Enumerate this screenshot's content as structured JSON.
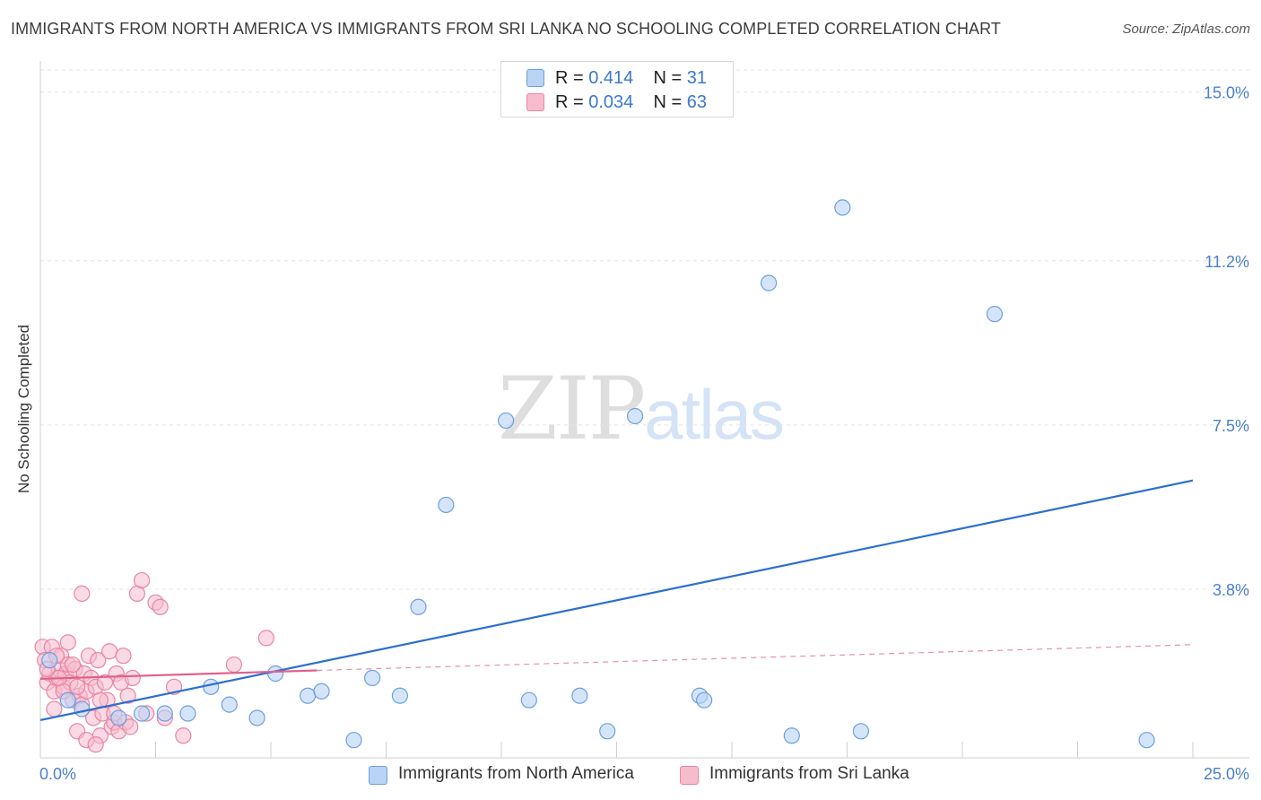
{
  "title": "IMMIGRANTS FROM NORTH AMERICA VS IMMIGRANTS FROM SRI LANKA NO SCHOOLING COMPLETED CORRELATION CHART",
  "source": "Source: ZipAtlas.com",
  "watermark": {
    "zip": "ZIP",
    "atlas": "atlas"
  },
  "legend": {
    "series1": {
      "r_label": "R = ",
      "r_value": "0.414",
      "n_label": "N = ",
      "n_value": "31"
    },
    "series2": {
      "r_label": "R = ",
      "r_value": "0.034",
      "n_label": "N = ",
      "n_value": "63"
    }
  },
  "colors": {
    "blue_fill": "#b9d3f5",
    "blue_stroke": "#6d9fe0",
    "blue_line": "#2b6fd0",
    "pink_fill": "#f6bccd",
    "pink_stroke": "#ea85a5",
    "pink_line": "#e0608d",
    "grid": "#e4e4e4",
    "axis_text": "#4a7fcf"
  },
  "chart_data": {
    "type": "scatter",
    "title": "IMMIGRANTS FROM NORTH AMERICA VS IMMIGRANTS FROM SRI LANKA NO SCHOOLING COMPLETED CORRELATION CHART",
    "xlabel": "",
    "ylabel": "No Schooling Completed",
    "xlim": [
      0,
      25
    ],
    "ylim": [
      0,
      15.5
    ],
    "x_tick_labels": [
      "0.0%",
      "25.0%"
    ],
    "y_ticks": [
      3.8,
      7.5,
      11.2,
      15.0
    ],
    "y_tick_labels": [
      "3.8%",
      "7.5%",
      "11.2%",
      "15.0%"
    ],
    "grid": true,
    "series": [
      {
        "name": "Immigrants from North America",
        "color": "#6d9fe0",
        "points": [
          [
            0.2,
            2.2
          ],
          [
            0.6,
            1.3
          ],
          [
            0.9,
            1.1
          ],
          [
            1.7,
            0.9
          ],
          [
            2.2,
            1.0
          ],
          [
            2.7,
            1.0
          ],
          [
            3.2,
            1.0
          ],
          [
            3.7,
            1.6
          ],
          [
            4.1,
            1.2
          ],
          [
            4.7,
            0.9
          ],
          [
            5.1,
            1.9
          ],
          [
            5.8,
            1.4
          ],
          [
            6.1,
            1.5
          ],
          [
            6.8,
            0.4
          ],
          [
            7.2,
            1.8
          ],
          [
            7.8,
            1.4
          ],
          [
            8.2,
            3.4
          ],
          [
            8.8,
            5.7
          ],
          [
            10.1,
            7.6
          ],
          [
            10.6,
            1.3
          ],
          [
            11.7,
            1.4
          ],
          [
            12.3,
            0.6
          ],
          [
            12.9,
            7.7
          ],
          [
            14.3,
            1.4
          ],
          [
            14.4,
            1.3
          ],
          [
            15.8,
            10.7
          ],
          [
            16.3,
            0.5
          ],
          [
            17.4,
            12.4
          ],
          [
            17.8,
            0.6
          ],
          [
            20.7,
            10.0
          ],
          [
            24.0,
            0.4
          ]
        ]
      },
      {
        "name": "Immigrants from Sri Lanka",
        "color": "#ea85a5",
        "points": [
          [
            0.05,
            2.5
          ],
          [
            0.1,
            2.2
          ],
          [
            0.15,
            1.7
          ],
          [
            0.2,
            1.9
          ],
          [
            0.25,
            2.5
          ],
          [
            0.3,
            1.5
          ],
          [
            0.35,
            1.8
          ],
          [
            0.4,
            2.0
          ],
          [
            0.45,
            2.3
          ],
          [
            0.5,
            1.6
          ],
          [
            0.55,
            1.9
          ],
          [
            0.6,
            2.1
          ],
          [
            0.65,
            1.7
          ],
          [
            0.7,
            1.3
          ],
          [
            0.75,
            2.0
          ],
          [
            0.8,
            0.6
          ],
          [
            0.85,
            1.4
          ],
          [
            0.9,
            1.2
          ],
          [
            0.95,
            1.9
          ],
          [
            1.0,
            1.5
          ],
          [
            1.05,
            2.3
          ],
          [
            1.1,
            1.8
          ],
          [
            1.15,
            0.9
          ],
          [
            1.2,
            1.6
          ],
          [
            1.25,
            2.2
          ],
          [
            1.3,
            0.5
          ],
          [
            1.35,
            1.0
          ],
          [
            1.4,
            1.7
          ],
          [
            1.45,
            1.3
          ],
          [
            1.5,
            2.4
          ],
          [
            1.55,
            0.7
          ],
          [
            1.6,
            0.8
          ],
          [
            1.65,
            1.9
          ],
          [
            1.7,
            0.6
          ],
          [
            1.75,
            1.7
          ],
          [
            1.8,
            2.3
          ],
          [
            1.85,
            0.8
          ],
          [
            1.9,
            1.4
          ],
          [
            1.95,
            0.7
          ],
          [
            2.0,
            1.8
          ],
          [
            2.1,
            3.7
          ],
          [
            2.2,
            4.0
          ],
          [
            0.3,
            1.1
          ],
          [
            0.9,
            3.7
          ],
          [
            2.5,
            3.5
          ],
          [
            2.7,
            0.9
          ],
          [
            2.9,
            1.6
          ],
          [
            3.1,
            0.5
          ],
          [
            2.3,
            1.0
          ],
          [
            4.2,
            2.1
          ],
          [
            4.9,
            2.7
          ],
          [
            0.5,
            1.5
          ],
          [
            0.15,
            2.0
          ],
          [
            0.35,
            2.3
          ],
          [
            0.6,
            2.6
          ],
          [
            0.7,
            2.1
          ],
          [
            1.0,
            0.4
          ],
          [
            1.2,
            0.3
          ],
          [
            0.4,
            1.8
          ],
          [
            0.8,
            1.6
          ],
          [
            1.3,
            1.3
          ],
          [
            2.6,
            3.4
          ],
          [
            1.6,
            1.0
          ]
        ]
      }
    ],
    "trendlines": [
      {
        "series": "Immigrants from North America",
        "x": [
          0,
          25
        ],
        "y": [
          0.85,
          6.25
        ],
        "style": "solid"
      },
      {
        "series": "Immigrants from Sri Lanka",
        "x": [
          0,
          6
        ],
        "y": [
          1.78,
          1.97
        ],
        "style": "solid"
      },
      {
        "series": "Immigrants from Sri Lanka",
        "x": [
          6,
          25
        ],
        "y": [
          1.97,
          2.55
        ],
        "style": "dashed"
      }
    ]
  }
}
